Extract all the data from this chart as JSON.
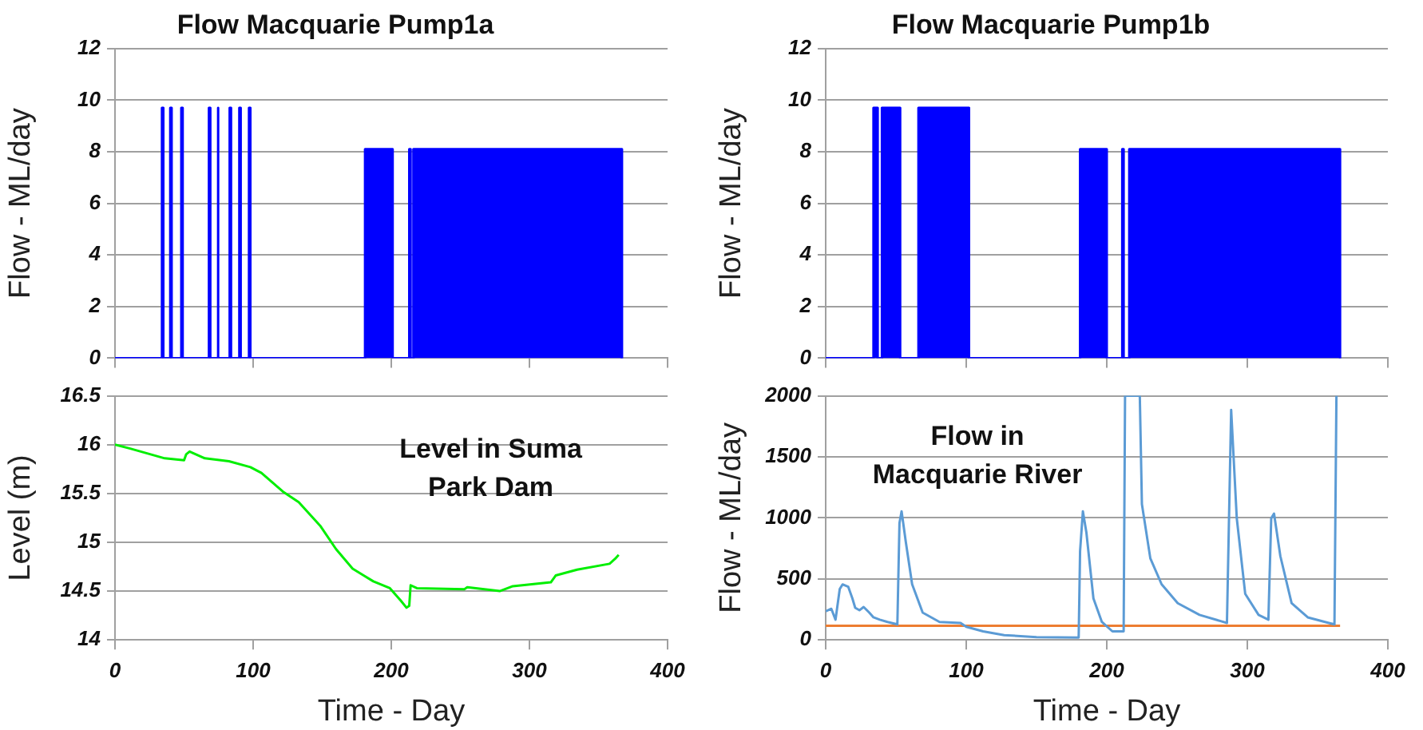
{
  "chart_data": [
    {
      "type": "area",
      "title": "Flow Macquarie Pump1a",
      "ylabel": "Flow - ML/day",
      "xlim": [
        0,
        400
      ],
      "xticks": [
        0,
        100,
        200,
        300,
        400
      ],
      "ylim": [
        0,
        12
      ],
      "yticks": [
        0,
        2,
        4,
        6,
        8,
        10,
        12
      ],
      "grid": "y",
      "tick_labels": "y",
      "series": [
        {
          "color": "#0000ff",
          "x": [
            0,
            34,
            34,
            35,
            35,
            40,
            40,
            41,
            41,
            48,
            48,
            49,
            49,
            68,
            68,
            69,
            69,
            74,
            74,
            75,
            75,
            83,
            83,
            84,
            84,
            90,
            90,
            91,
            91,
            97,
            97,
            98,
            98,
            181,
            181,
            201,
            201,
            213,
            213,
            214,
            214,
            216,
            216,
            367,
            367
          ],
          "values": [
            0,
            0,
            9.7,
            9.7,
            0,
            0,
            9.7,
            9.7,
            0,
            0,
            9.7,
            9.7,
            0,
            0,
            9.7,
            9.7,
            0,
            0,
            9.7,
            9.7,
            0,
            0,
            9.7,
            9.7,
            0,
            0,
            9.7,
            9.7,
            0,
            0,
            9.7,
            9.7,
            0,
            0,
            8.1,
            8.1,
            0,
            0,
            8.1,
            8.1,
            0,
            0,
            8.1,
            8.1,
            0
          ]
        }
      ]
    },
    {
      "type": "area",
      "title": "Flow Macquarie Pump1b",
      "ylabel": "Flow - ML/day",
      "xlim": [
        0,
        400
      ],
      "xticks": [
        0,
        100,
        200,
        300,
        400
      ],
      "ylim": [
        0,
        12
      ],
      "yticks": [
        0,
        2,
        4,
        6,
        8,
        10,
        12
      ],
      "grid": "y",
      "tick_labels": "y",
      "series": [
        {
          "color": "#0000ff",
          "x": [
            0,
            34,
            34,
            37,
            37,
            40,
            40,
            53,
            53,
            66,
            66,
            102,
            102,
            181,
            181,
            200,
            200,
            211,
            211,
            212,
            212,
            216,
            216,
            366,
            366
          ],
          "values": [
            0,
            0,
            9.7,
            9.7,
            0,
            0,
            9.7,
            9.7,
            0,
            0,
            9.7,
            9.7,
            0,
            0,
            8.1,
            8.1,
            0,
            0,
            8.1,
            8.1,
            0,
            0,
            8.1,
            8.1,
            0
          ]
        }
      ]
    },
    {
      "type": "line",
      "xlabel": "Time - Day",
      "ylabel": "Level (m)",
      "xlim": [
        0,
        400
      ],
      "xticks": [
        0,
        100,
        200,
        300,
        400
      ],
      "ylim": [
        14,
        16.5
      ],
      "yticks": [
        14,
        14.5,
        15,
        15.5,
        16,
        16.5
      ],
      "grid": "y",
      "annotations": [
        "Level in Suma Park Dam"
      ],
      "series": [
        {
          "color": "#00ee00",
          "x": [
            0,
            11,
            36,
            50,
            51.5,
            54,
            65,
            82.5,
            98,
            106,
            121.5,
            133,
            148.5,
            160,
            172,
            180,
            187,
            199,
            207,
            211,
            213,
            214,
            218.5,
            253,
            255,
            278.5,
            288,
            315.5,
            319,
            334.5,
            358,
            362,
            364.6
          ],
          "values": [
            16.0,
            15.96,
            15.86,
            15.84,
            15.9,
            15.93,
            15.86,
            15.83,
            15.77,
            15.71,
            15.52,
            15.41,
            15.17,
            14.93,
            14.73,
            14.66,
            14.6,
            14.53,
            14.4,
            14.33,
            14.35,
            14.56,
            14.53,
            14.52,
            14.54,
            14.5,
            14.55,
            14.59,
            14.66,
            14.72,
            14.78,
            14.83,
            14.87
          ]
        }
      ]
    },
    {
      "type": "line",
      "xlabel": "Time - Day",
      "ylabel": "Flow - ML/day",
      "xlim": [
        0,
        400
      ],
      "xticks": [
        0,
        100,
        200,
        300,
        400
      ],
      "ylim": [
        0,
        2000
      ],
      "yticks": [
        0,
        500,
        1000,
        1500,
        2000
      ],
      "grid": "y",
      "annotations": [
        "Flow in Macquarie River"
      ],
      "series": [
        {
          "color": "#5b9bd5",
          "x": [
            0,
            4,
            7,
            10,
            12,
            16,
            19,
            21,
            24,
            27,
            31,
            34,
            38.5,
            44,
            51,
            52.5,
            54,
            57,
            61.5,
            69,
            81,
            96,
            100,
            112,
            127,
            150,
            180,
            181,
            183,
            185.5,
            190.5,
            196.5,
            204,
            212,
            213,
            223.5,
            225,
            231,
            239,
            250.5,
            266,
            281,
            285.5,
            288.5,
            292.5,
            298.5,
            308,
            315,
            317,
            319,
            323.5,
            331.5,
            343,
            358,
            362,
            363.4
          ],
          "values": [
            235,
            255,
            166,
            417,
            455,
            436,
            340,
            263,
            243,
            270,
            224,
            185,
            166,
            147,
            127,
            958,
            1054,
            803,
            456,
            224,
            147,
            139,
            108,
            70,
            39,
            23,
            19,
            726,
            1054,
            880,
            340,
            147,
            70,
            70,
            2000,
            2000,
            1112,
            668,
            456,
            301,
            205,
            154,
            139,
            1884,
            996,
            378,
            205,
            166,
            996,
            1035,
            687,
            301,
            185,
            139,
            127,
            2000
          ]
        },
        {
          "color": "#ed7d31",
          "x": [
            0,
            366
          ],
          "values": [
            116,
            116
          ]
        }
      ]
    }
  ]
}
